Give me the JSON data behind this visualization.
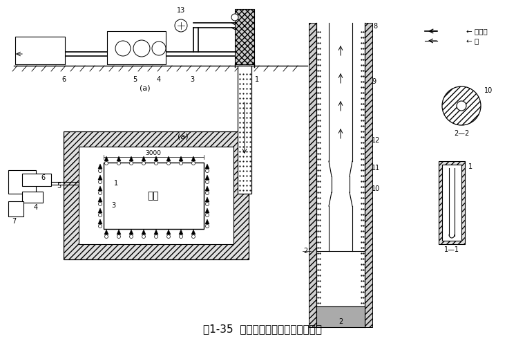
{
  "title": "图1-35  喷射井点设备及平面布置简图",
  "bg": "#ffffff",
  "legend_gaoya": "← 高压水",
  "legend_shui": "← 水",
  "label_jikeng": "基坑",
  "label_3000": "3000",
  "label_a_top": "(a)",
  "label_a_plan": "(a)",
  "label_22": "2—2",
  "label_11": "1—1",
  "n1": "1",
  "n2": "2",
  "n3": "3",
  "n4": "4",
  "n5": "5",
  "n6": "6",
  "n7": "7",
  "n8": "8",
  "n9": "9",
  "n10": "10",
  "n11": "11",
  "n12": "12",
  "n13": "13"
}
